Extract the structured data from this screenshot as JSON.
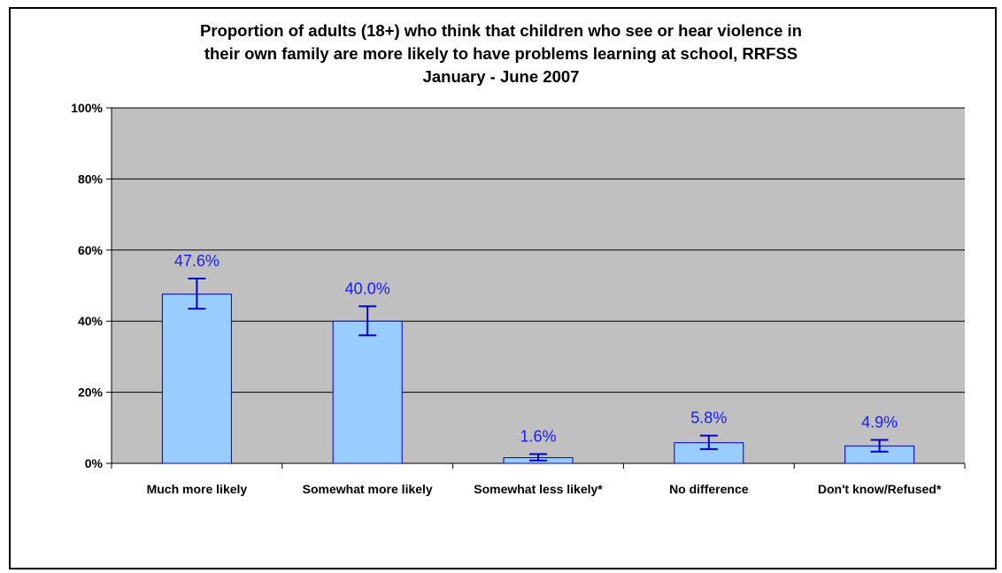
{
  "chart_data": {
    "type": "bar",
    "title_lines": [
      "Proportion of adults (18+) who think that children who see or hear violence in",
      "their own family are more likely to have problems learning at school, RRFSS",
      "January - June 2007"
    ],
    "xlabel": "",
    "ylabel": "",
    "categories": [
      "Much more likely",
      "Somewhat more likely",
      "Somewhat less likely*",
      "No difference",
      "Don't know/Refused*"
    ],
    "values": [
      47.6,
      40.0,
      1.6,
      5.8,
      4.9
    ],
    "value_labels": [
      "47.6%",
      "40.0%",
      "1.6%",
      "5.8%",
      "4.9%"
    ],
    "error_bars": [
      {
        "low": 43.5,
        "high": 52.0
      },
      {
        "low": 36.0,
        "high": 44.2
      },
      {
        "low": 0.8,
        "high": 2.6
      },
      {
        "low": 4.0,
        "high": 7.8
      },
      {
        "low": 3.3,
        "high": 6.6
      }
    ],
    "yticks": [
      "0%",
      "20%",
      "40%",
      "60%",
      "80%",
      "100%"
    ],
    "ytick_values": [
      0,
      20,
      40,
      60,
      80,
      100
    ],
    "ylim": [
      0,
      100
    ],
    "grid": true,
    "legend": "none",
    "colors": {
      "plot_background": "#c0c0c0",
      "bar_fill": "#99ccff",
      "bar_stroke": "#0000cc",
      "error_bar": "#0000cc",
      "data_label": "#1a1aff",
      "gridline": "#000000"
    }
  }
}
